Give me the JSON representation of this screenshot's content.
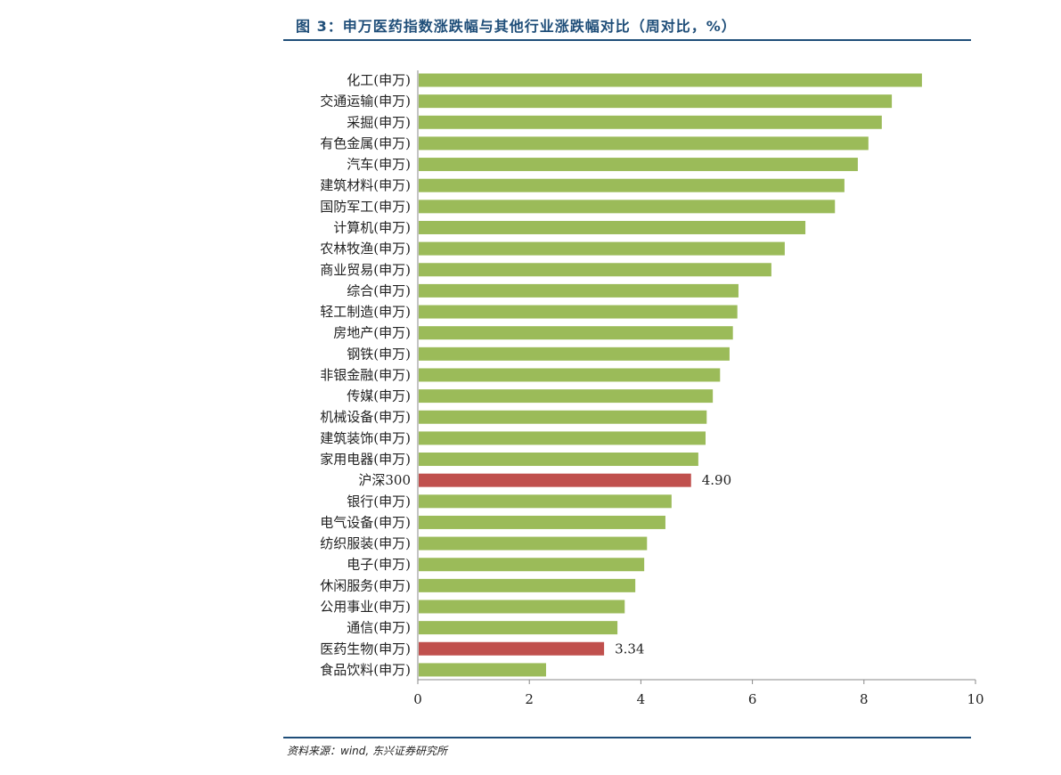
{
  "title": "图 3：申万医药指数涨跌幅与其他行业涨跌幅对比（周对比，%）",
  "source": "资料来源：wind, 东兴证券研究所",
  "colors": {
    "default_bar": "#9bbb59",
    "highlight_bar": "#c0504d",
    "title": "#1f4e79"
  },
  "chart_data": {
    "type": "bar",
    "orientation": "horizontal",
    "title": "申万医药指数涨跌幅与其他行业涨跌幅对比（周对比，%）",
    "xlabel": "",
    "ylabel": "",
    "xlim": [
      0,
      10
    ],
    "xticks": [
      0,
      2,
      4,
      6,
      8,
      10
    ],
    "grid": false,
    "categories": [
      "化工(申万)",
      "交通运输(申万)",
      "采掘(申万)",
      "有色金属(申万)",
      "汽车(申万)",
      "建筑材料(申万)",
      "国防军工(申万)",
      "计算机(申万)",
      "农林牧渔(申万)",
      "商业贸易(申万)",
      "综合(申万)",
      "轻工制造(申万)",
      "房地产(申万)",
      "钢铁(申万)",
      "非银金融(申万)",
      "传媒(申万)",
      "机械设备(申万)",
      "建筑装饰(申万)",
      "家用电器(申万)",
      "沪深300",
      "银行(申万)",
      "电气设备(申万)",
      "纺织服装(申万)",
      "电子(申万)",
      "休闲服务(申万)",
      "公用事业(申万)",
      "通信(申万)",
      "医药生物(申万)",
      "食品饮料(申万)"
    ],
    "values": [
      9.04,
      8.5,
      8.32,
      8.08,
      7.89,
      7.65,
      7.48,
      6.95,
      6.58,
      6.34,
      5.75,
      5.73,
      5.65,
      5.59,
      5.42,
      5.29,
      5.18,
      5.16,
      5.03,
      4.9,
      4.55,
      4.44,
      4.11,
      4.06,
      3.9,
      3.71,
      3.58,
      3.34,
      2.3
    ],
    "highlighted": [
      "沪深300",
      "医药生物(申万)"
    ],
    "data_labels": {
      "沪深300": "4.90",
      "医药生物(申万)": "3.34"
    }
  }
}
